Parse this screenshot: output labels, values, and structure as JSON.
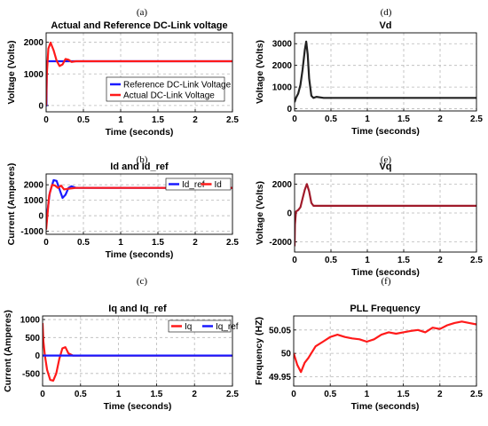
{
  "chart_data": [
    {
      "panel": "(a)",
      "type": "line",
      "title": "Actual and Reference DC-Link voltage",
      "xlabel": "Time (seconds)",
      "ylabel": "Voltage (Volts)",
      "xlim": [
        0,
        2.5
      ],
      "ylim": [
        -200,
        2300
      ],
      "xticks": [
        0,
        0.5,
        1,
        1.5,
        2,
        2.5
      ],
      "yticks": [
        0,
        1000,
        2000
      ],
      "grid": true,
      "legend": {
        "position": "center-right",
        "entries": [
          "Reference DC-Link Voltage",
          "Actual DC-Link Voltage"
        ]
      },
      "series": [
        {
          "name": "Reference DC-Link Voltage",
          "color": "#1a1aff",
          "x": [
            0,
            0.005,
            0.01,
            2.5
          ],
          "y": [
            0,
            0,
            1400,
            1400
          ]
        },
        {
          "name": "Actual DC-Link Voltage",
          "color": "#ff1a1a",
          "x": [
            0,
            0.01,
            0.03,
            0.06,
            0.1,
            0.14,
            0.18,
            0.22,
            0.26,
            0.3,
            0.34,
            0.4,
            0.5,
            2.5
          ],
          "y": [
            0,
            1000,
            1800,
            1990,
            1750,
            1420,
            1250,
            1300,
            1470,
            1450,
            1380,
            1400,
            1400,
            1400
          ]
        }
      ]
    },
    {
      "panel": "(b)",
      "type": "line",
      "title": "Id and Id_ref",
      "xlabel": "Time (seconds)",
      "ylabel": "Current (Amperes)",
      "xlim": [
        0,
        2.5
      ],
      "ylim": [
        -1200,
        2700
      ],
      "xticks": [
        0,
        0.5,
        1,
        1.5,
        2,
        2.5
      ],
      "yticks": [
        -1000,
        0,
        1000,
        2000
      ],
      "grid": true,
      "legend": {
        "position": "top-right",
        "entries": [
          "Id_ref",
          "Id"
        ]
      },
      "series": [
        {
          "name": "Id_ref",
          "color": "#1a1aff",
          "x": [
            0,
            0.02,
            0.05,
            0.1,
            0.14,
            0.18,
            0.22,
            0.26,
            0.3,
            0.34,
            0.4,
            0.5,
            2.5
          ],
          "y": [
            -700,
            400,
            1500,
            2300,
            2250,
            1700,
            1150,
            1350,
            1800,
            1900,
            1800,
            1800,
            1800
          ]
        },
        {
          "name": "Id",
          "color": "#ff1a1a",
          "x": [
            0,
            0.02,
            0.04,
            0.08,
            0.12,
            0.16,
            0.2,
            0.24,
            0.3,
            0.4,
            0.5,
            2.5
          ],
          "y": [
            -900,
            200,
            1300,
            2000,
            1950,
            1800,
            1950,
            1700,
            1750,
            1800,
            1800,
            1800
          ]
        }
      ]
    },
    {
      "panel": "(c)",
      "type": "line",
      "title": "Iq and Iq_ref",
      "xlabel": "Time (seconds)",
      "ylabel": "Current (Amperes)",
      "xlim": [
        0,
        2.5
      ],
      "ylim": [
        -850,
        1100
      ],
      "xticks": [
        0,
        0.5,
        1,
        1.5,
        2,
        2.5
      ],
      "yticks": [
        -500,
        0,
        500,
        1000
      ],
      "grid": true,
      "legend": {
        "position": "top-right",
        "entries": [
          "Iq",
          "Iq_ref"
        ]
      },
      "series": [
        {
          "name": "Iq",
          "color": "#ff1a1a",
          "x": [
            0,
            0.01,
            0.03,
            0.06,
            0.1,
            0.14,
            0.18,
            0.22,
            0.26,
            0.3,
            0.34,
            0.4,
            0.5,
            2.5
          ],
          "y": [
            900,
            400,
            0,
            -400,
            -680,
            -700,
            -500,
            -100,
            200,
            230,
            60,
            0,
            0,
            0
          ]
        },
        {
          "name": "Iq_ref",
          "color": "#1a1aff",
          "x": [
            0,
            0.3,
            0.4,
            2.5
          ],
          "y": [
            0,
            0,
            0,
            0
          ]
        }
      ]
    },
    {
      "panel": "(d)",
      "type": "line",
      "title": "Vd",
      "xlabel": "Time (seconds)",
      "ylabel": "Voltage (Volts)",
      "xlim": [
        0,
        2.5
      ],
      "ylim": [
        -100,
        3500
      ],
      "xticks": [
        0,
        0.5,
        1,
        1.5,
        2,
        2.5
      ],
      "yticks": [
        0,
        1000,
        2000,
        3000
      ],
      "grid": true,
      "series": [
        {
          "name": "",
          "color": "#222222",
          "x": [
            0,
            0.02,
            0.05,
            0.08,
            0.11,
            0.14,
            0.16,
            0.18,
            0.2,
            0.23,
            0.26,
            0.3,
            0.4,
            2.5
          ],
          "y": [
            300,
            500,
            700,
            1100,
            1800,
            2700,
            3100,
            2500,
            1400,
            600,
            500,
            550,
            500,
            500
          ]
        }
      ]
    },
    {
      "panel": "(e)",
      "type": "line",
      "title": "Vq",
      "xlabel": "Time (seconds)",
      "ylabel": "Voltage (Volts)",
      "xlim": [
        0,
        2.5
      ],
      "ylim": [
        -2700,
        2700
      ],
      "xticks": [
        0,
        0.5,
        1,
        1.5,
        2,
        2.5
      ],
      "yticks": [
        -2000,
        0,
        2000
      ],
      "grid": true,
      "series": [
        {
          "name": "",
          "color": "#a01a2a",
          "x": [
            0,
            0.005,
            0.02,
            0.05,
            0.08,
            0.11,
            0.14,
            0.17,
            0.2,
            0.23,
            0.26,
            0.3,
            0.4,
            2.5
          ],
          "y": [
            -2300,
            -800,
            100,
            200,
            400,
            1000,
            1600,
            2000,
            1500,
            700,
            500,
            500,
            500,
            500
          ]
        }
      ]
    },
    {
      "panel": "(f)",
      "type": "line",
      "title": "PLL Frequency",
      "xlabel": "Time (seconds)",
      "ylabel": "Frequency (HZ)",
      "xlim": [
        0,
        2.5
      ],
      "ylim": [
        49.93,
        50.08
      ],
      "xticks": [
        0,
        0.5,
        1,
        1.5,
        2,
        2.5
      ],
      "yticks": [
        49.95,
        50,
        50.05
      ],
      "grid": true,
      "series": [
        {
          "name": "",
          "color": "#ff1a1a",
          "x": [
            0,
            0.05,
            0.1,
            0.15,
            0.2,
            0.3,
            0.4,
            0.5,
            0.6,
            0.7,
            0.8,
            0.9,
            1.0,
            1.1,
            1.2,
            1.3,
            1.4,
            1.5,
            1.6,
            1.7,
            1.8,
            1.9,
            2.0,
            2.1,
            2.2,
            2.3,
            2.4,
            2.5
          ],
          "y": [
            50.0,
            49.975,
            49.96,
            49.98,
            49.99,
            50.015,
            50.025,
            50.035,
            50.04,
            50.035,
            50.032,
            50.03,
            50.025,
            50.03,
            50.04,
            50.045,
            50.042,
            50.045,
            50.048,
            50.05,
            50.045,
            50.055,
            50.052,
            50.06,
            50.065,
            50.068,
            50.065,
            50.062
          ]
        }
      ]
    }
  ]
}
